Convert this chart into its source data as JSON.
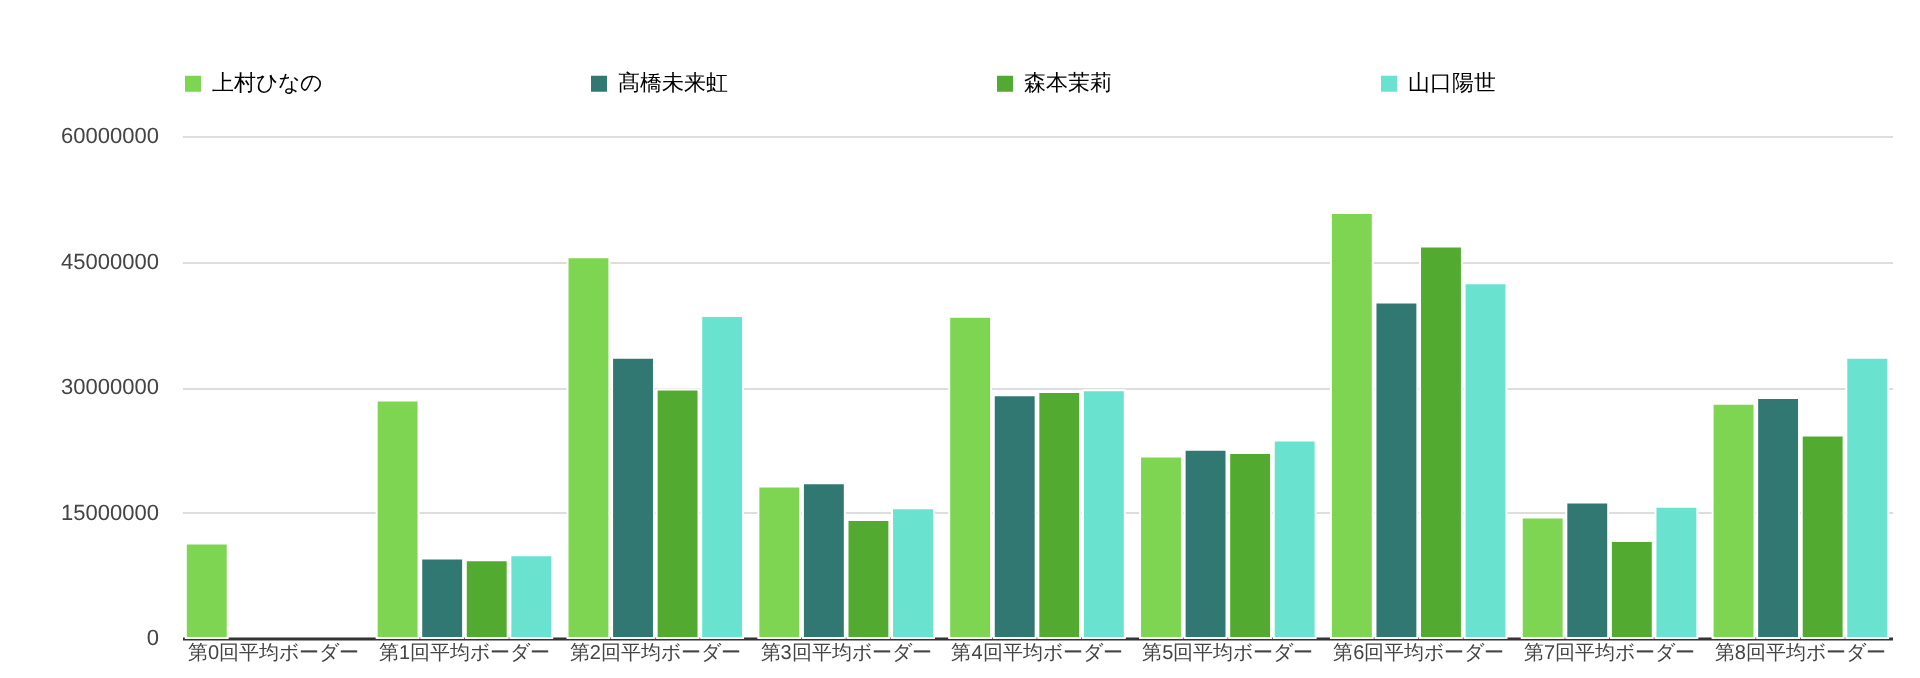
{
  "chart_data": {
    "type": "bar",
    "categories": [
      "第0回平均ボーダー",
      "第1回平均ボーダー",
      "第2回平均ボーダー",
      "第3回平均ボーダー",
      "第4回平均ボーダー",
      "第5回平均ボーダー",
      "第6回平均ボーダー",
      "第7回平均ボーダー",
      "第8回平均ボーダー"
    ],
    "series": [
      {
        "name": "上村ひなの",
        "color": "#7ed551",
        "values": [
          11300000,
          28400000,
          45500000,
          18100000,
          38400000,
          21700000,
          50800000,
          14400000,
          28000000
        ]
      },
      {
        "name": "髙橋未来虹",
        "color": "#317873",
        "values": [
          null,
          9500000,
          33500000,
          18500000,
          29000000,
          22500000,
          40100000,
          16200000,
          28700000
        ]
      },
      {
        "name": "森本茉莉",
        "color": "#52ab30",
        "values": [
          null,
          9300000,
          29700000,
          14100000,
          29400000,
          22100000,
          46800000,
          11600000,
          24200000
        ]
      },
      {
        "name": "山口陽世",
        "color": "#6ae2d0",
        "values": [
          null,
          9900000,
          38500000,
          15500000,
          29600000,
          23600000,
          42400000,
          15700000,
          33500000
        ]
      }
    ],
    "ylim": [
      0,
      60000000
    ],
    "yticks": [
      0,
      15000000,
      30000000,
      45000000,
      60000000
    ],
    "grid": "y",
    "legend": "top"
  }
}
